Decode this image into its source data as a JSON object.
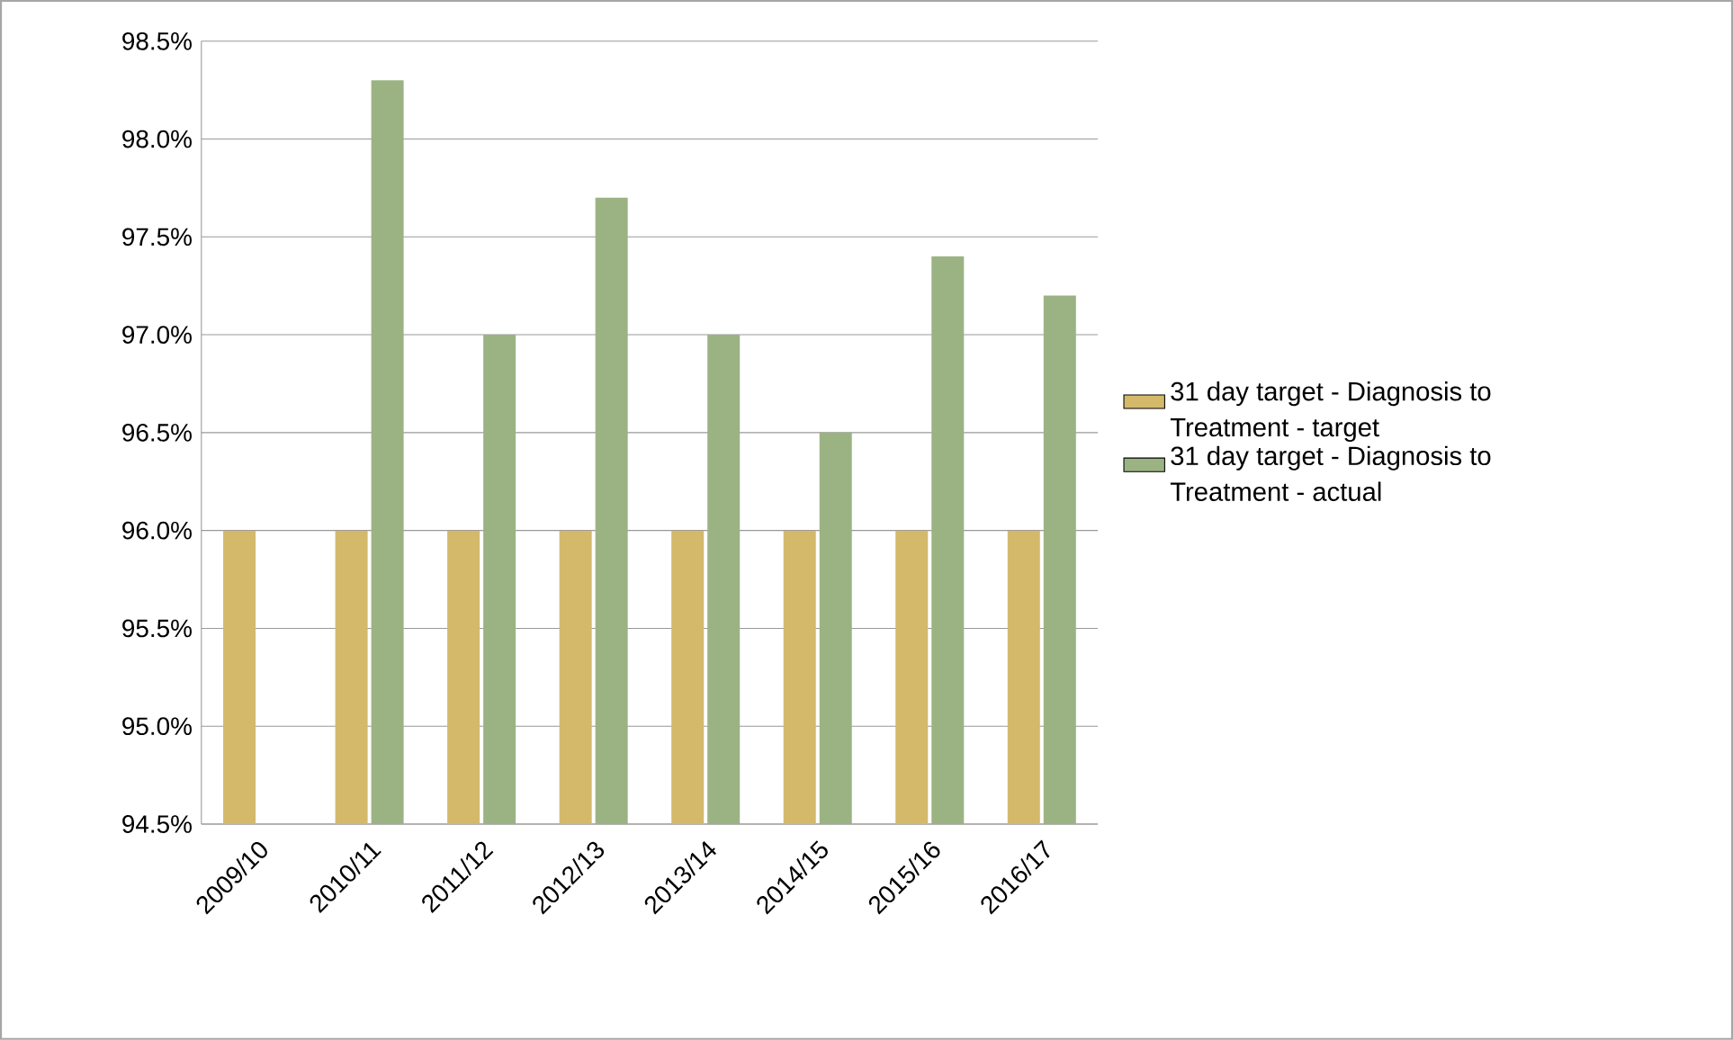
{
  "chart_data": {
    "type": "bar",
    "categories": [
      "2009/10",
      "2010/11",
      "2011/12",
      "2012/13",
      "2013/14",
      "2014/15",
      "2015/16",
      "2016/17"
    ],
    "series": [
      {
        "name": "31 day target - Diagnosis to Treatment - target",
        "color": "#d4b96a",
        "values": [
          96.0,
          96.0,
          96.0,
          96.0,
          96.0,
          96.0,
          96.0,
          96.0
        ]
      },
      {
        "name": "31 day target - Diagnosis to Treatment - actual",
        "color": "#9bb382",
        "values": [
          null,
          98.3,
          97.0,
          97.7,
          97.0,
          96.5,
          97.4,
          97.2
        ]
      }
    ],
    "ylim": [
      94.5,
      98.5
    ],
    "yticks": [
      {
        "value": 94.5,
        "label": "94.5%"
      },
      {
        "value": 95.0,
        "label": "95.0%"
      },
      {
        "value": 95.5,
        "label": "95.5%"
      },
      {
        "value": 96.0,
        "label": "96.0%"
      },
      {
        "value": 96.5,
        "label": "96.5%"
      },
      {
        "value": 97.0,
        "label": "97.0%"
      },
      {
        "value": 97.5,
        "label": "97.5%"
      },
      {
        "value": 98.0,
        "label": "98.0%"
      },
      {
        "value": 98.5,
        "label": "98.5%"
      }
    ],
    "grid": "y",
    "legend": "right"
  }
}
